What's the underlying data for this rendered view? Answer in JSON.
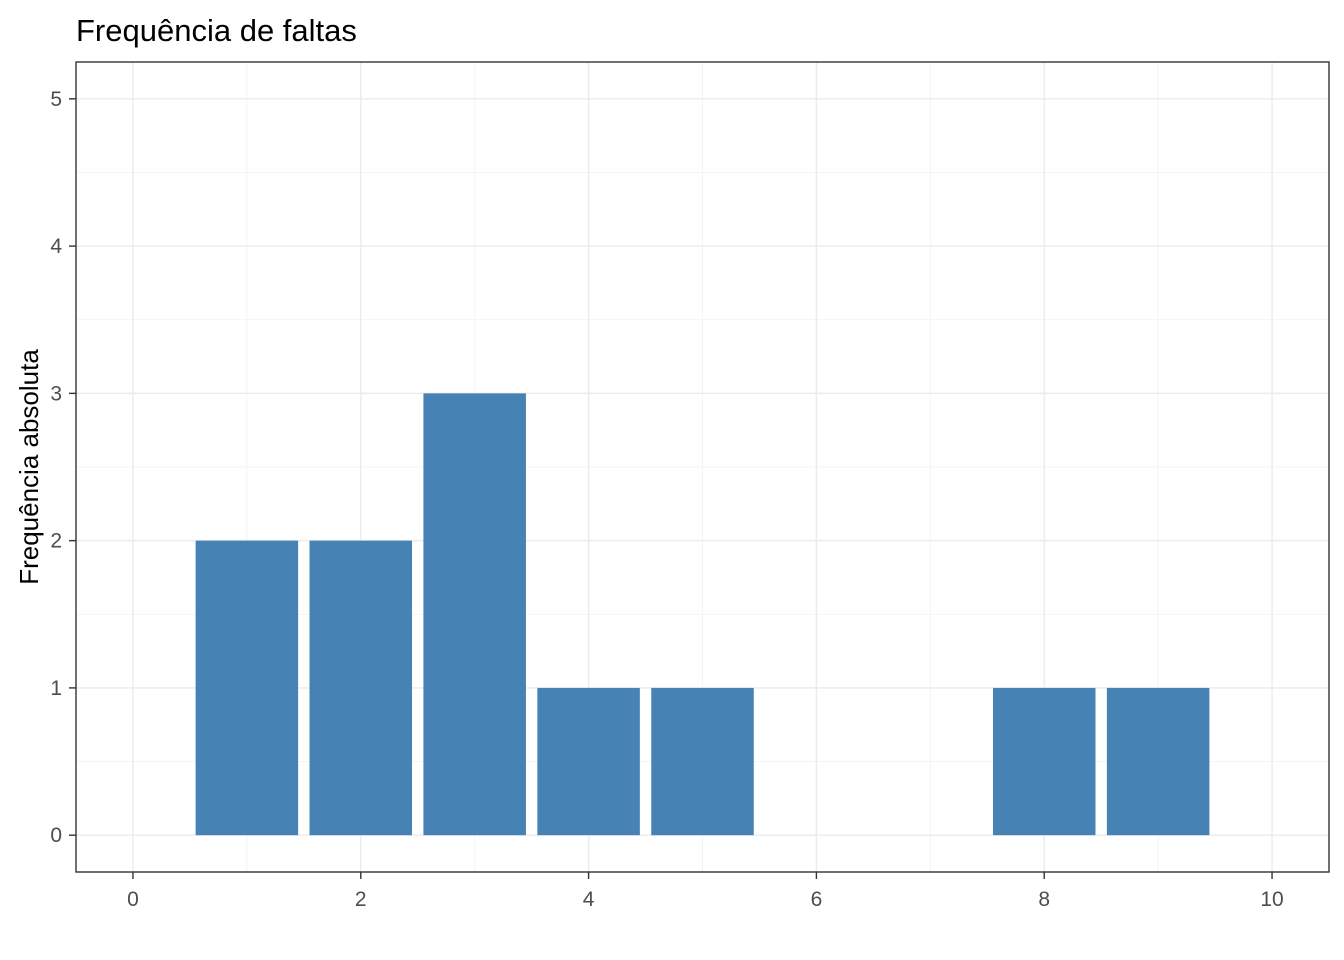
{
  "chart_data": {
    "type": "bar",
    "title": "Frequência de faltas",
    "xlabel": "",
    "ylabel": "Frequência absoluta",
    "x": [
      1,
      2,
      3,
      4,
      5,
      8,
      9
    ],
    "values": [
      2,
      2,
      3,
      1,
      1,
      1,
      1
    ],
    "xlim": [
      -0.5,
      10.5
    ],
    "ylim": [
      -0.25,
      5.25
    ],
    "x_ticks": [
      0,
      2,
      4,
      6,
      8,
      10
    ],
    "y_ticks": [
      0,
      1,
      2,
      3,
      4,
      5
    ],
    "x_tick_labels": [
      "0",
      "2",
      "4",
      "6",
      "8",
      "10"
    ],
    "y_tick_labels": [
      "0",
      "1",
      "2",
      "3",
      "4",
      "5"
    ],
    "bar_color": "#4682B4",
    "grid": true,
    "legend": "none"
  }
}
